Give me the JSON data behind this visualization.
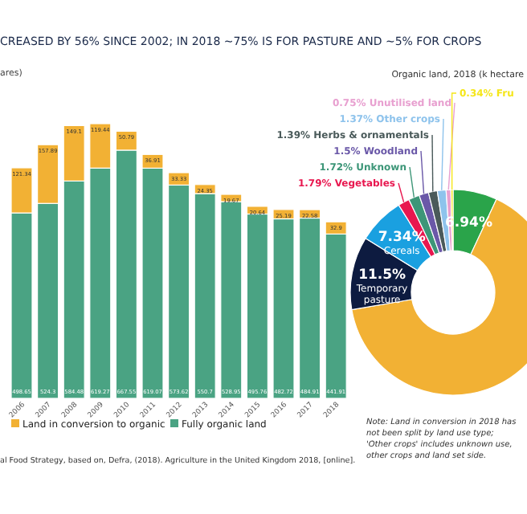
{
  "chart_data": [
    {
      "type": "bar",
      "title": "CREASED BY 56% SINCE 2002; IN 2018 ~75% IS FOR PASTURE AND ~5% FOR CROPS",
      "subtitle": "ares)",
      "categories": [
        "2006",
        "2007",
        "2008",
        "2009",
        "2010",
        "2011",
        "2012",
        "2013",
        "2014",
        "2015",
        "2016",
        "2017",
        "2018"
      ],
      "stacked": true,
      "data_labels": true,
      "legend": "bottom",
      "series": [
        {
          "name": "Fully organic land",
          "color": "#4aa383",
          "values": [
            498.65,
            524.3,
            584.48,
            619.27,
            667.55,
            619.07,
            573.62,
            550.7,
            528.95,
            495.76,
            482.72,
            484.91,
            441.91
          ]
        },
        {
          "name": "Land in conversion to organic",
          "color": "#f2b134",
          "values": [
            121.34,
            157.89,
            149.1,
            119.44,
            50.79,
            36.91,
            33.33,
            24.35,
            19.67,
            20.64,
            25.19,
            22.58,
            32.9
          ]
        }
      ],
      "annotations": [
        "al Food Strategy, based on, Defra, (2018). Agriculture in the United Kingdom 2018, [online]."
      ]
    },
    {
      "type": "donut",
      "title": "Organic land, 2018 (k hectare",
      "categories": [
        null,
        null,
        "Temporary pasture",
        "Cereals",
        "Vegetables",
        "Unknown",
        "Woodland",
        "Herbs & ornamentals",
        "Other crops",
        "Unutilised land",
        "Fru"
      ],
      "values": [
        6.94,
        65.36,
        11.5,
        7.34,
        1.79,
        1.72,
        1.5,
        1.39,
        1.37,
        0.75,
        0.34
      ],
      "colors": [
        "#2aa44a",
        "#f2b134",
        "#0d1b40",
        "#1aa0e0",
        "#e8174f",
        "#3d9678",
        "#6a58a8",
        "#4a5a5a",
        "#8ec3ec",
        "#e8a0d0",
        "#f5e61a"
      ],
      "value_labels": [
        "6.94%",
        null,
        "11.5%",
        "7.34%",
        "1.79%",
        "1.72%",
        "1.5%",
        "1.39%",
        "1.37%",
        "0.75%",
        "0.34%"
      ],
      "annotations": [
        "Note: Land in conversion in 2018 has not been split by land use type; 'Other crops' includes unknown use, other crops and land set side."
      ]
    }
  ]
}
